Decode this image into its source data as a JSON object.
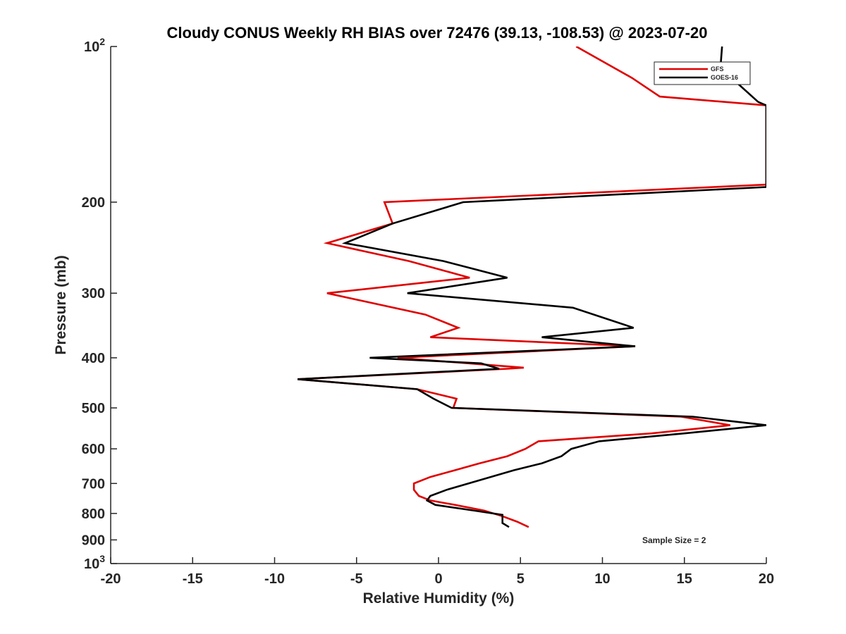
{
  "chart_data": {
    "type": "line",
    "title": "Cloudy CONUS Weekly RH BIAS over 72476 (39.13, -108.53) @ 2023-07-20",
    "xlabel": "Relative Humidity (%)",
    "ylabel": "Pressure (mb)",
    "xlim": [
      -20,
      20
    ],
    "ylim": [
      100,
      1000
    ],
    "y_scale": "log",
    "y_reversed": true,
    "grid": false,
    "x_ticks": [
      {
        "value": -20,
        "label": "-20"
      },
      {
        "value": -15,
        "label": "-15"
      },
      {
        "value": -10,
        "label": "-10"
      },
      {
        "value": -5,
        "label": "-5"
      },
      {
        "value": 0,
        "label": "0"
      },
      {
        "value": 5,
        "label": "5"
      },
      {
        "value": 10,
        "label": "10"
      },
      {
        "value": 15,
        "label": "15"
      },
      {
        "value": 20,
        "label": "20"
      }
    ],
    "y_ticks": [
      {
        "value": 100,
        "base": "10",
        "exp": "2"
      },
      {
        "value": 200,
        "base": "200",
        "exp": ""
      },
      {
        "value": 300,
        "base": "300",
        "exp": ""
      },
      {
        "value": 400,
        "base": "400",
        "exp": ""
      },
      {
        "value": 500,
        "base": "500",
        "exp": ""
      },
      {
        "value": 600,
        "base": "600",
        "exp": ""
      },
      {
        "value": 700,
        "base": "700",
        "exp": ""
      },
      {
        "value": 800,
        "base": "800",
        "exp": ""
      },
      {
        "value": 900,
        "base": "900",
        "exp": ""
      },
      {
        "value": 1000,
        "base": "10",
        "exp": "3"
      }
    ],
    "legend_position": "top-right",
    "series": [
      {
        "name": "GFS",
        "color": "#e00000",
        "points": [
          [
            5.5,
            850
          ],
          [
            4.8,
            830
          ],
          [
            3.9,
            810
          ],
          [
            2.8,
            790
          ],
          [
            1.0,
            770
          ],
          [
            -0.5,
            755
          ],
          [
            -1.2,
            740
          ],
          [
            -1.5,
            720
          ],
          [
            -1.5,
            700
          ],
          [
            -0.5,
            680
          ],
          [
            1.0,
            660
          ],
          [
            2.5,
            640
          ],
          [
            4.2,
            620
          ],
          [
            5.3,
            600
          ],
          [
            6.1,
            580
          ],
          [
            13.0,
            560
          ],
          [
            17.8,
            540
          ],
          [
            14.8,
            520
          ],
          [
            0.9,
            500
          ],
          [
            1.1,
            480
          ],
          [
            -1.3,
            460
          ],
          [
            -8.6,
            440
          ],
          [
            4.2,
            420
          ],
          [
            5.2,
            418
          ],
          [
            -2.5,
            400
          ],
          [
            12.0,
            380
          ],
          [
            -0.5,
            365
          ],
          [
            1.2,
            350
          ],
          [
            -0.8,
            330
          ],
          [
            -6.8,
            300
          ],
          [
            1.9,
            280
          ],
          [
            -1.8,
            260
          ],
          [
            -6.8,
            240
          ],
          [
            -2.8,
            220
          ],
          [
            -3.3,
            200
          ],
          [
            20.0,
            185
          ],
          [
            20.0,
            130
          ],
          [
            13.5,
            125
          ],
          [
            11.8,
            115
          ],
          [
            8.4,
            100
          ]
        ]
      },
      {
        "name": "GOES-16",
        "color": "#000000",
        "points": [
          [
            4.3,
            850
          ],
          [
            3.9,
            835
          ],
          [
            3.9,
            805
          ],
          [
            2.2,
            790
          ],
          [
            -0.2,
            770
          ],
          [
            -0.7,
            755
          ],
          [
            -0.5,
            740
          ],
          [
            0.5,
            720
          ],
          [
            2.5,
            690
          ],
          [
            4.6,
            660
          ],
          [
            6.3,
            640
          ],
          [
            7.5,
            620
          ],
          [
            8.1,
            600
          ],
          [
            9.8,
            580
          ],
          [
            15.0,
            560
          ],
          [
            20.0,
            540
          ],
          [
            15.5,
            520
          ],
          [
            0.8,
            500
          ],
          [
            -0.3,
            480
          ],
          [
            -1.3,
            460
          ],
          [
            -8.6,
            440
          ],
          [
            3.7,
            420
          ],
          [
            2.6,
            410
          ],
          [
            -4.2,
            400
          ],
          [
            12.0,
            380
          ],
          [
            6.3,
            365
          ],
          [
            11.9,
            350
          ],
          [
            8.2,
            320
          ],
          [
            -1.9,
            300
          ],
          [
            4.2,
            280
          ],
          [
            0.3,
            260
          ],
          [
            -5.7,
            240
          ],
          [
            -2.8,
            220
          ],
          [
            1.5,
            200
          ],
          [
            20.0,
            187
          ],
          [
            20.0,
            130
          ],
          [
            19.5,
            128
          ],
          [
            17.2,
            110
          ],
          [
            17.3,
            100
          ]
        ]
      }
    ],
    "annotation": "Sample Size = 2"
  }
}
